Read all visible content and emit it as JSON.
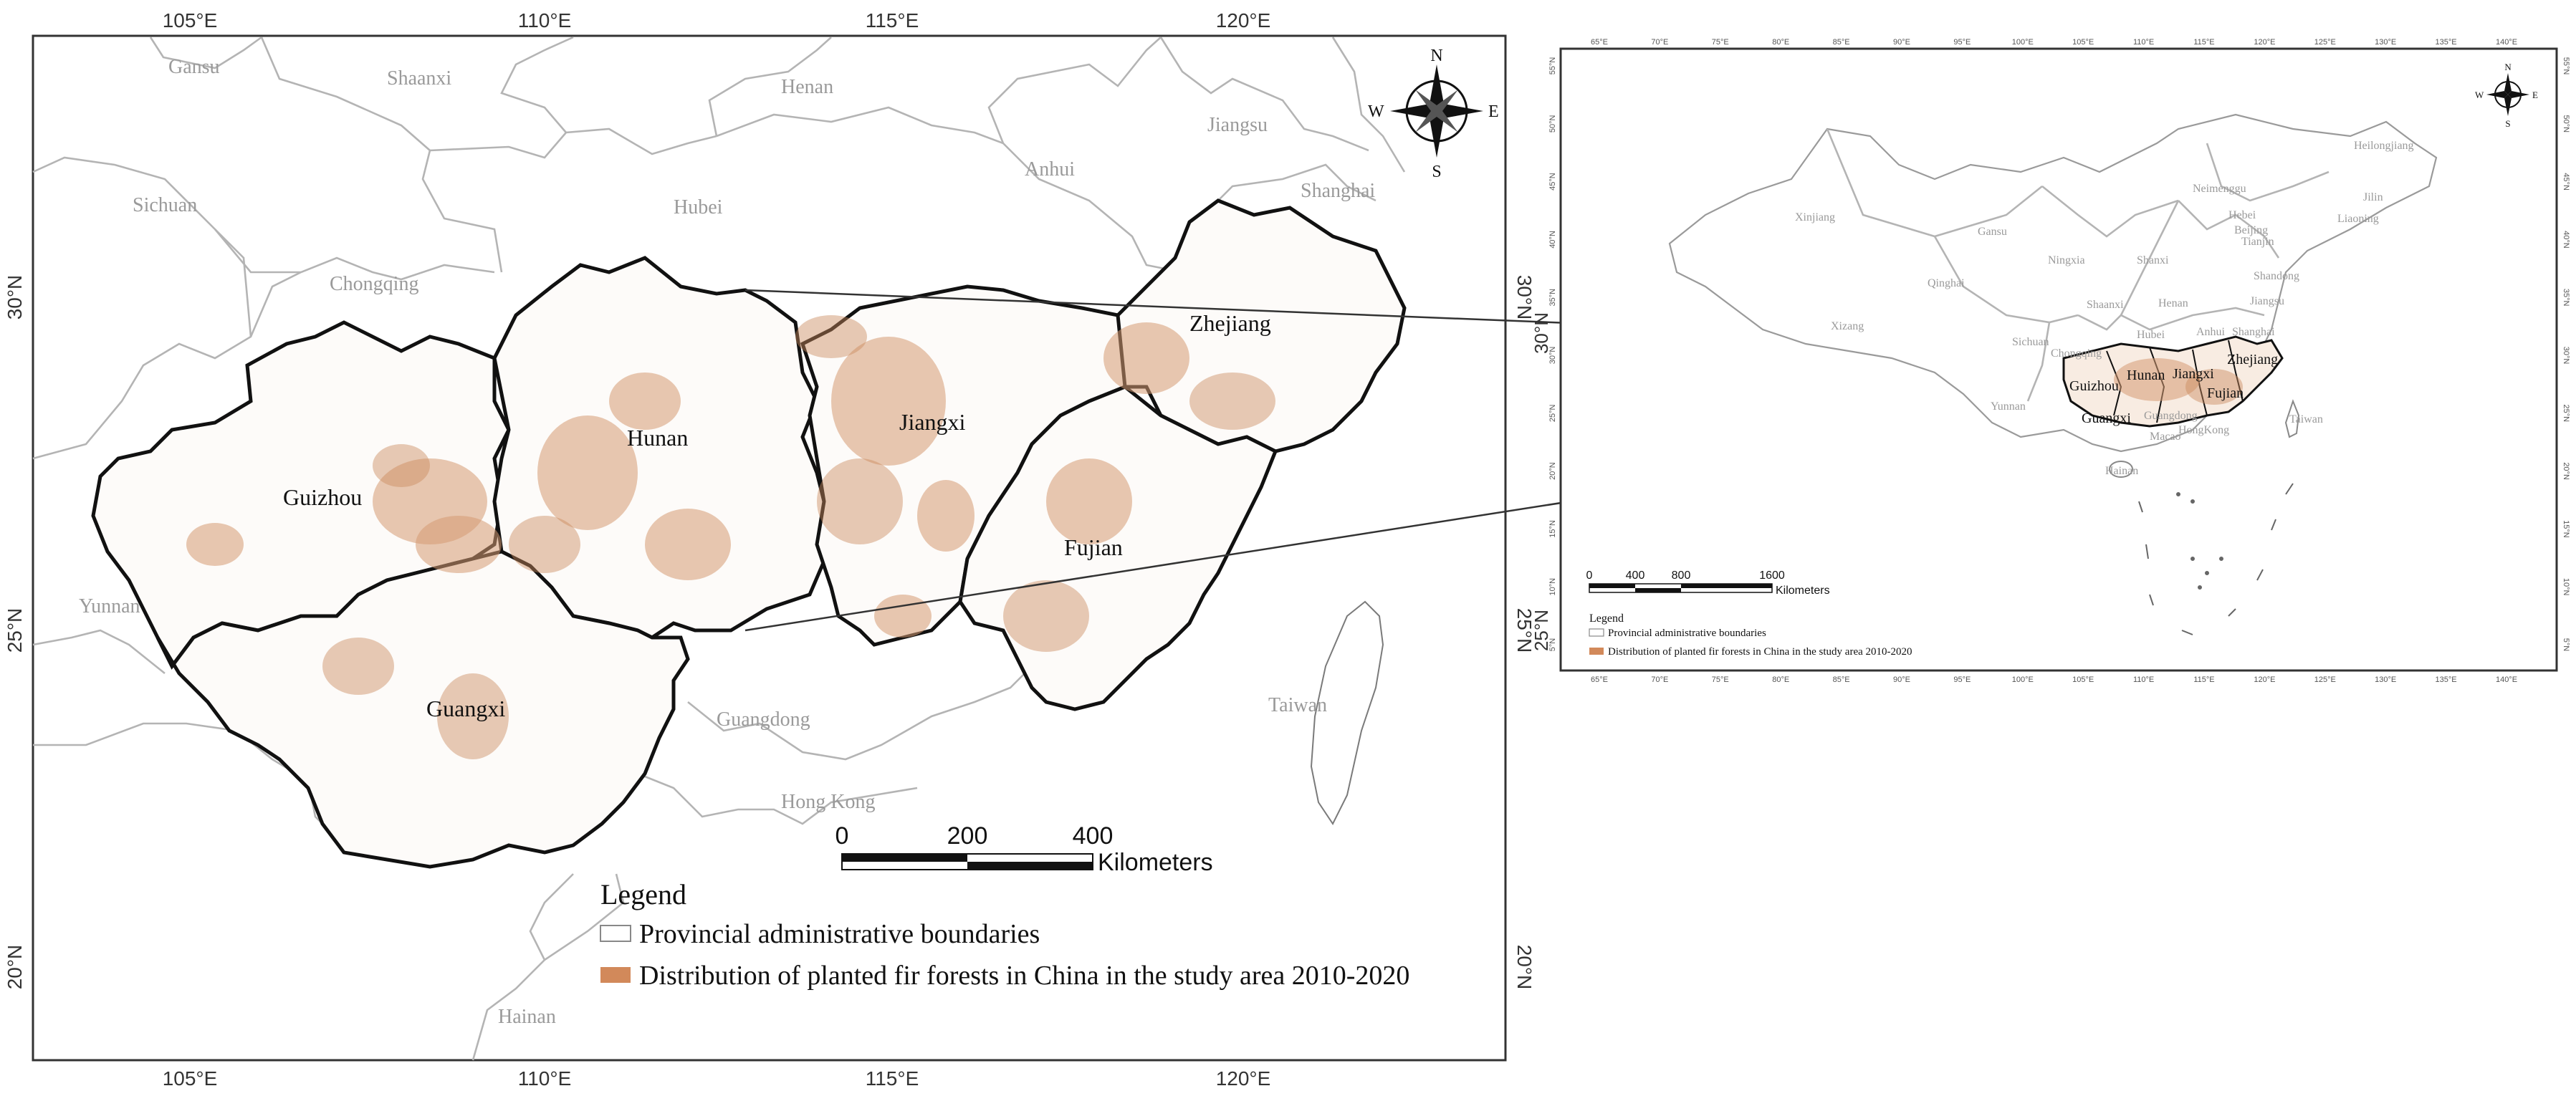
{
  "main_map": {
    "top_ticks": [
      "105°E",
      "110°E",
      "115°E",
      "120°E"
    ],
    "bottom_ticks": [
      "105°E",
      "110°E",
      "115°E",
      "120°E"
    ],
    "left_ticks": [
      "30°N",
      "25°N",
      "20°N"
    ],
    "right_ticks": [
      "30°N",
      "25°N",
      "20°N"
    ],
    "study_provinces": [
      "Guizhou",
      "Hunan",
      "Jiangxi",
      "Zhejiang",
      "Fujian",
      "Guangxi"
    ],
    "other_provinces": [
      "Gansu",
      "Shaanxi",
      "Henan",
      "Jiangsu",
      "Anhui",
      "Sichuan",
      "Hubei",
      "Shanghai",
      "Chongqing",
      "Yunnan",
      "Guangdong",
      "Taiwan",
      "Hainan",
      "Hong Kong"
    ],
    "north_arrow": {
      "n": "N",
      "s": "S",
      "e": "E",
      "w": "W"
    },
    "scale": {
      "labels": [
        "0",
        "200",
        "400"
      ],
      "unit": "Kilometers"
    },
    "legend": {
      "title": "Legend",
      "items": [
        {
          "label": "Provincial administrative boundaries",
          "color": "#ffffff"
        },
        {
          "label": "Distribution of planted fir forests in China in the study area 2010-2020",
          "color": "#d2895a"
        }
      ]
    }
  },
  "inset_map": {
    "top_ticks": [
      "65°E",
      "70°E",
      "75°E",
      "80°E",
      "85°E",
      "90°E",
      "95°E",
      "100°E",
      "105°E",
      "110°E",
      "115°E",
      "120°E",
      "125°E",
      "130°E",
      "135°E",
      "140°E"
    ],
    "bottom_ticks": [
      "65°E",
      "70°E",
      "75°E",
      "80°E",
      "85°E",
      "90°E",
      "95°E",
      "100°E",
      "105°E",
      "110°E",
      "115°E",
      "120°E",
      "125°E",
      "130°E",
      "135°E",
      "140°E"
    ],
    "left_ticks": [
      "55°N",
      "50°N",
      "45°N",
      "40°N",
      "35°N",
      "30°N",
      "25°N",
      "20°N",
      "15°N",
      "10°N",
      "5°N"
    ],
    "right_ticks": [
      "55°N",
      "50°N",
      "45°N",
      "40°N",
      "35°N",
      "30°N",
      "25°N",
      "20°N",
      "15°N",
      "10°N",
      "5°N"
    ],
    "big_left_ticks": [
      "30°N",
      "25°N"
    ],
    "provinces_grey": [
      "Heilongjiang",
      "Jilin",
      "Liaoning",
      "Neimenggu",
      "Xinjiang",
      "Gansu",
      "Hebei",
      "Beijing",
      "Tianjin",
      "Ningxia",
      "Shanxi",
      "Shandong",
      "Qinghai",
      "Shaanxi",
      "Henan",
      "Jiangsu",
      "Anhui",
      "Shanghai",
      "Xizang",
      "Sichuan",
      "Hubei",
      "Chongqing",
      "Yunnan",
      "Guangdong",
      "Taiwan",
      "Hainan",
      "Macao",
      "HongKong"
    ],
    "provinces_dark": [
      "Hunan",
      "Jiangxi",
      "Zhejiang",
      "Guizhou",
      "Fujian",
      "Guangxi"
    ],
    "north_arrow": {
      "n": "N",
      "s": "S",
      "e": "E",
      "w": "W"
    },
    "scale": {
      "labels": [
        "0",
        "400",
        "800",
        "1600"
      ],
      "unit": "Kilometers"
    },
    "legend": {
      "title": "Legend",
      "items": [
        {
          "label": "Provincial administrative boundaries",
          "color": "#ffffff"
        },
        {
          "label": "Distribution of planted fir forests in China in the study area 2010-2020",
          "color": "#d2895a"
        }
      ]
    }
  }
}
